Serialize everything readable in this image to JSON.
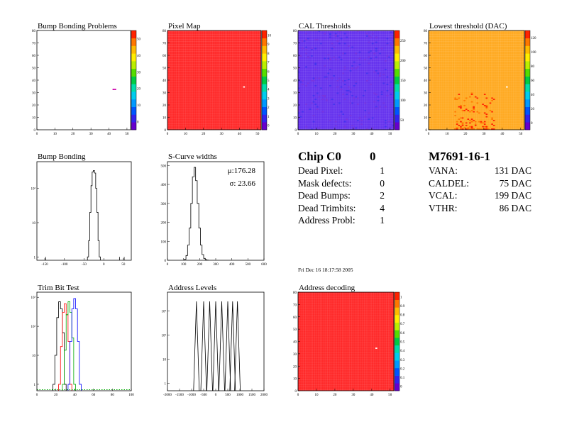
{
  "chart_data": [
    {
      "id": "bump-map",
      "type": "heatmap",
      "title": "Bump Bonding Problems",
      "xlim": [
        0,
        52
      ],
      "ylim": [
        0,
        80
      ],
      "x_ticks": [
        "0",
        "10",
        "20",
        "30",
        "40",
        "50"
      ],
      "y_ticks": [
        "0",
        "10",
        "20",
        "30",
        "40",
        "50",
        "60",
        "70",
        "80"
      ],
      "z_ticks": [
        "0",
        "10",
        "20",
        "30",
        "40",
        "50"
      ],
      "base_color": "#ffffff",
      "hot": [
        {
          "x": 42,
          "y": 32,
          "color": "#cc00aa"
        },
        {
          "x": 43,
          "y": 32,
          "color": "#cc00aa"
        }
      ]
    },
    {
      "id": "pixel-map",
      "type": "heatmap",
      "title": "Pixel Map",
      "xlim": [
        0,
        52
      ],
      "ylim": [
        0,
        80
      ],
      "x_ticks": [
        "0",
        "10",
        "20",
        "30",
        "40",
        "50"
      ],
      "y_ticks": [
        "0",
        "10",
        "20",
        "30",
        "40",
        "50",
        "60",
        "70",
        "80"
      ],
      "z_ticks": [
        "0",
        "1",
        "2",
        "3",
        "4",
        "5",
        "6",
        "7",
        "8",
        "9",
        "10"
      ],
      "base_color": "#ff2a2a",
      "hot": [
        {
          "x": 42,
          "y": 34,
          "color": "#ffffff"
        }
      ]
    },
    {
      "id": "cal-thresholds",
      "type": "heatmap",
      "title": "CAL Thresholds",
      "xlim": [
        0,
        52
      ],
      "ylim": [
        0,
        80
      ],
      "x_ticks": [
        "0",
        "10",
        "20",
        "30",
        "40",
        "50"
      ],
      "y_ticks": [
        "0",
        "10",
        "20",
        "30",
        "40",
        "50",
        "60",
        "70",
        "80"
      ],
      "z_ticks": [
        "50",
        "100",
        "150",
        "200",
        "250"
      ],
      "base_color": "#6633ee",
      "hot": []
    },
    {
      "id": "lowest-threshold",
      "type": "heatmap",
      "title": "Lowest threshold (DAC)",
      "xlim": [
        0,
        52
      ],
      "ylim": [
        0,
        80
      ],
      "x_ticks": [
        "0",
        "10",
        "20",
        "30",
        "40",
        "50"
      ],
      "y_ticks": [
        "0",
        "10",
        "20",
        "30",
        "40",
        "50",
        "60",
        "70",
        "80"
      ],
      "z_ticks": [
        "0",
        "20",
        "40",
        "60",
        "80",
        "100",
        "120"
      ],
      "base_color": "#ffaa22",
      "hot": [
        {
          "x": 42,
          "y": 34,
          "color": "#ffffff"
        }
      ]
    },
    {
      "id": "bump-bonding-hist",
      "type": "line",
      "title": "Bump Bonding",
      "log_y": true,
      "xlim": [
        -170,
        70
      ],
      "ylim": [
        0.8,
        600
      ],
      "x_ticks": [
        "-150",
        "-100",
        "-50",
        "0",
        "50"
      ],
      "y_ticks": [
        "1",
        "10",
        "10²"
      ],
      "series": [
        {
          "color": "#000000",
          "x": [
            -40,
            -37,
            -34,
            -31,
            -28,
            -25,
            -22,
            -19,
            -16,
            -13,
            -10
          ],
          "y": [
            1,
            3,
            20,
            120,
            300,
            330,
            280,
            100,
            20,
            3,
            1
          ]
        }
      ]
    },
    {
      "id": "s-curve-widths",
      "type": "line",
      "title": "S-Curve widths",
      "xlim": [
        0,
        600
      ],
      "ylim": [
        0,
        520
      ],
      "x_ticks": [
        "0",
        "100",
        "200",
        "300",
        "400",
        "500",
        "600"
      ],
      "y_ticks": [
        "0",
        "100",
        "200",
        "300",
        "400",
        "500"
      ],
      "stats": {
        "mean": "μ:176.28",
        "sigma": "σ: 23.66"
      },
      "series": [
        {
          "color": "#000000",
          "x": [
            110,
            120,
            130,
            140,
            150,
            160,
            170,
            180,
            190,
            200,
            210,
            220,
            230,
            240,
            250
          ],
          "y": [
            5,
            25,
            80,
            170,
            300,
            440,
            490,
            420,
            300,
            170,
            80,
            30,
            10,
            3,
            1
          ]
        }
      ]
    },
    {
      "id": "trim-bit-test",
      "type": "line",
      "title": "Trim Bit Test",
      "log_y": true,
      "xlim": [
        0,
        100
      ],
      "ylim": [
        0.6,
        1500
      ],
      "x_ticks": [
        "0",
        "20",
        "40",
        "60",
        "80",
        "100"
      ],
      "y_ticks": [
        "1",
        "10",
        "10²",
        "10³"
      ],
      "series": [
        {
          "color": "#000000",
          "x": [
            18,
            20,
            22,
            24,
            26,
            28,
            30
          ],
          "y": [
            1,
            10,
            200,
            700,
            400,
            60,
            1
          ]
        },
        {
          "color": "#ff0000",
          "x": [
            24,
            26,
            28,
            30,
            32,
            34,
            36
          ],
          "y": [
            1,
            20,
            300,
            600,
            250,
            30,
            1
          ]
        },
        {
          "color": "#00aa00",
          "x": [
            28,
            30,
            32,
            34,
            36,
            38,
            40
          ],
          "y": [
            1,
            15,
            250,
            700,
            300,
            40,
            1
          ]
        },
        {
          "color": "#0000ff",
          "x": [
            34,
            36,
            38,
            40,
            42,
            44,
            46
          ],
          "y": [
            1,
            30,
            400,
            900,
            400,
            30,
            1
          ]
        }
      ],
      "baseline_color": "#00aa00"
    },
    {
      "id": "address-levels",
      "type": "line",
      "title": "Address Levels",
      "log_y": true,
      "xlim": [
        -2000,
        2000
      ],
      "ylim": [
        0.5,
        6000
      ],
      "x_ticks": [
        "-2000",
        "-1500",
        "-1000",
        "-500",
        "0",
        "500",
        "1000",
        "1500",
        "2000"
      ],
      "y_ticks": [
        "1",
        "10",
        "10²",
        "10³"
      ],
      "peaks": [
        -800,
        -500,
        -250,
        0,
        250,
        500,
        700,
        900
      ],
      "peak_height": 2500
    },
    {
      "id": "address-decoding",
      "type": "heatmap",
      "title": "Address decoding",
      "xlim": [
        0,
        52
      ],
      "ylim": [
        0,
        80
      ],
      "x_ticks": [
        "0",
        "10",
        "20",
        "30",
        "40",
        "50"
      ],
      "y_ticks": [
        "0",
        "10",
        "20",
        "30",
        "40",
        "50",
        "60",
        "70",
        "80"
      ],
      "z_ticks": [
        "0",
        "0.1",
        "0.2",
        "0.3",
        "0.4",
        "0.5",
        "0.6",
        "0.7",
        "0.8",
        "0.9",
        "1"
      ],
      "base_color": "#ff2a2a",
      "hot": [
        {
          "x": 42,
          "y": 34,
          "color": "#ffffff"
        }
      ]
    }
  ],
  "summary": {
    "chip": "Chip C0",
    "chip_no": "0",
    "rows": [
      {
        "label": "Dead Pixel:",
        "value": "1"
      },
      {
        "label": "Mask defects:",
        "value": "0"
      },
      {
        "label": "Dead Bumps:",
        "value": "2"
      },
      {
        "label": "Dead Trimbits:",
        "value": "4"
      },
      {
        "label": "Address Probl:",
        "value": "1"
      }
    ],
    "date": "Fri Dec 16 18:17:58 2005"
  },
  "module": {
    "name": "M7691-16-1",
    "rows": [
      {
        "label": "VANA:",
        "value": "131 DAC"
      },
      {
        "label": "CALDEL:",
        "value": "75 DAC"
      },
      {
        "label": "VCAL:",
        "value": "199 DAC"
      },
      {
        "label": "VTHR:",
        "value": "86 DAC"
      }
    ]
  }
}
